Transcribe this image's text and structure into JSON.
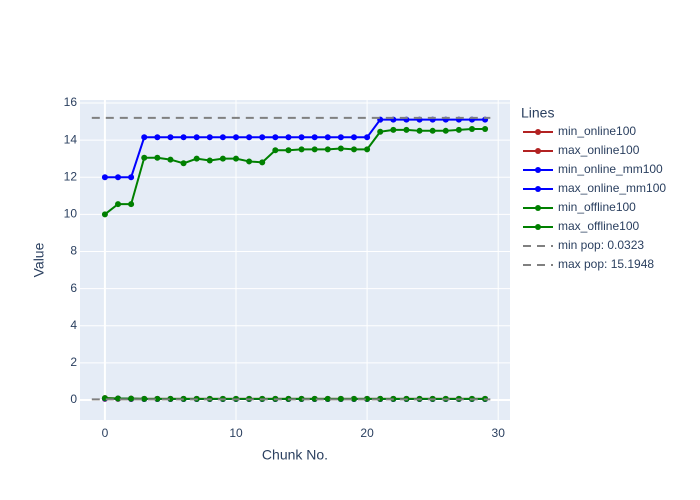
{
  "chart_data": {
    "type": "line",
    "x_label": "Chunk No.",
    "y_label": "Value",
    "legend_title": "Lines",
    "x": [
      0,
      1,
      2,
      3,
      4,
      5,
      6,
      7,
      8,
      9,
      10,
      11,
      12,
      13,
      14,
      15,
      16,
      17,
      18,
      19,
      20,
      21,
      22,
      23,
      24,
      25,
      26,
      27,
      28,
      29
    ],
    "xlim": [
      -1.9,
      30.9
    ],
    "ylim": [
      -1.08,
      16.16
    ],
    "xticks": [
      0,
      10,
      20,
      30
    ],
    "yticks": [
      0,
      2,
      4,
      6,
      8,
      10,
      12,
      14,
      16
    ],
    "grid": true,
    "series": [
      {
        "name": "min_online100",
        "color": "#b22222",
        "values": [
          0.06,
          0.06,
          0.05,
          0.05,
          0.05,
          0.05,
          0.05,
          0.05,
          0.05,
          0.05,
          0.05,
          0.05,
          0.05,
          0.05,
          0.05,
          0.05,
          0.05,
          0.05,
          0.05,
          0.05,
          0.05,
          0.05,
          0.05,
          0.05,
          0.05,
          0.05,
          0.05,
          0.05,
          0.05,
          0.05
        ]
      },
      {
        "name": "max_online100",
        "color": "#b22222",
        "values": [
          0.1,
          0.08,
          0.07,
          0.06,
          0.06,
          0.06,
          0.06,
          0.06,
          0.06,
          0.06,
          0.06,
          0.06,
          0.06,
          0.06,
          0.06,
          0.06,
          0.06,
          0.06,
          0.06,
          0.06,
          0.06,
          0.06,
          0.06,
          0.06,
          0.06,
          0.06,
          0.06,
          0.06,
          0.06,
          0.06
        ]
      },
      {
        "name": "min_online_mm100",
        "color": "#0000ff",
        "values": [
          0.08,
          0.07,
          0.06,
          0.05,
          0.05,
          0.05,
          0.05,
          0.05,
          0.05,
          0.05,
          0.05,
          0.05,
          0.05,
          0.05,
          0.05,
          0.05,
          0.05,
          0.05,
          0.05,
          0.05,
          0.05,
          0.05,
          0.05,
          0.05,
          0.05,
          0.05,
          0.05,
          0.05,
          0.05,
          0.05
        ]
      },
      {
        "name": "max_online_mm100",
        "color": "#0000ff",
        "values": [
          12,
          12,
          12,
          14.15,
          14.15,
          14.15,
          14.15,
          14.15,
          14.15,
          14.15,
          14.15,
          14.15,
          14.15,
          14.15,
          14.15,
          14.15,
          14.15,
          14.15,
          14.15,
          14.15,
          14.15,
          15.1,
          15.1,
          15.1,
          15.1,
          15.1,
          15.1,
          15.1,
          15.1,
          15.1
        ]
      },
      {
        "name": "min_offline100",
        "color": "#008000",
        "values": [
          0.1,
          0.08,
          0.07,
          0.06,
          0.06,
          0.06,
          0.06,
          0.06,
          0.06,
          0.06,
          0.06,
          0.06,
          0.06,
          0.06,
          0.06,
          0.06,
          0.06,
          0.06,
          0.06,
          0.06,
          0.06,
          0.06,
          0.06,
          0.06,
          0.06,
          0.06,
          0.06,
          0.06,
          0.06,
          0.06
        ]
      },
      {
        "name": "max_offline100",
        "color": "#008000",
        "values": [
          10,
          10.55,
          10.55,
          13.05,
          13.05,
          12.95,
          12.75,
          13,
          12.9,
          13,
          13,
          12.85,
          12.8,
          13.45,
          13.45,
          13.5,
          13.5,
          13.5,
          13.55,
          13.5,
          13.5,
          14.45,
          14.55,
          14.55,
          14.5,
          14.5,
          14.5,
          14.55,
          14.6,
          14.6
        ]
      }
    ],
    "reference_lines": [
      {
        "name": "min pop: 0.0323",
        "value": 0.0323,
        "x": [
          -1,
          29.4
        ],
        "color": "#808080",
        "dash": "dash"
      },
      {
        "name": "max pop: 15.1948",
        "value": 15.1948,
        "x": [
          -1,
          29.4
        ],
        "color": "#808080",
        "dash": "dash"
      }
    ]
  }
}
